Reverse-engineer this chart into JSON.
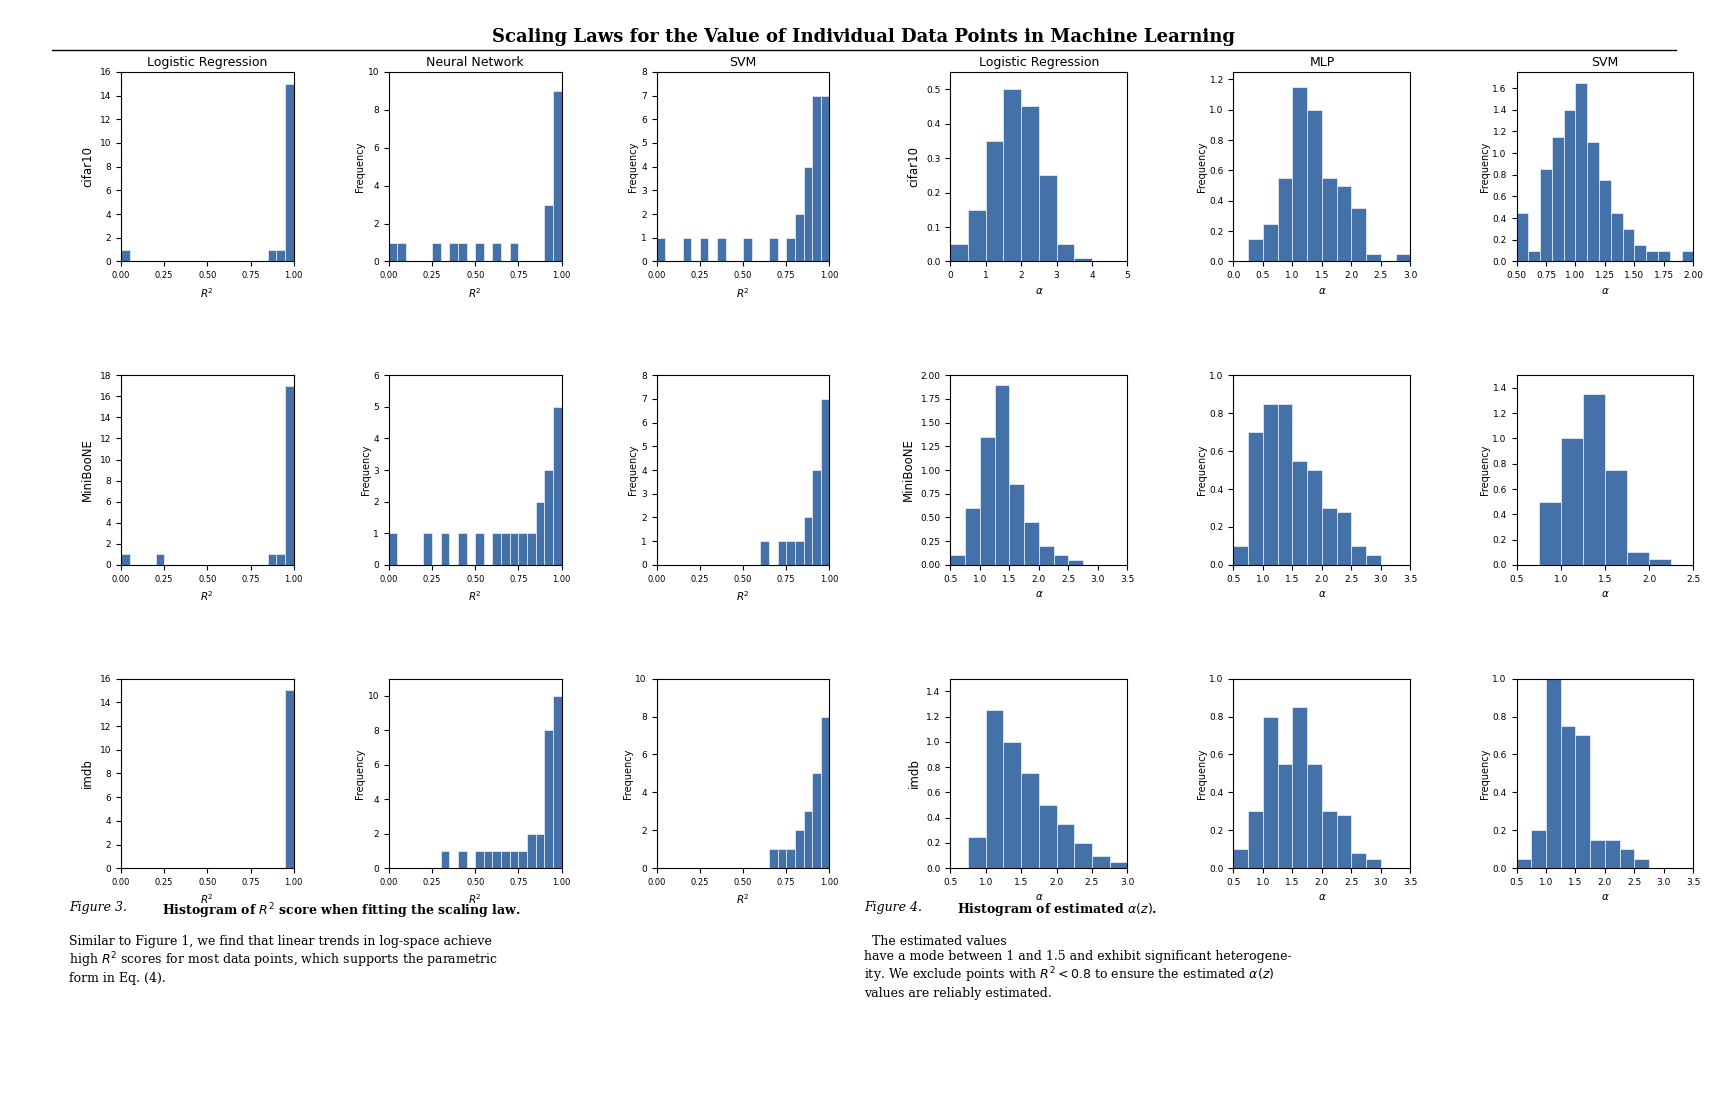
{
  "title": "Scaling Laws for the Value of Individual Data Points in Machine Learning",
  "fig3_row_labels": [
    "cifar10",
    "MiniBooNE",
    "imdb"
  ],
  "fig3_col_labels": [
    "Logistic Regression",
    "Neural Network",
    "SVM"
  ],
  "fig4_row_labels": [
    "cifar10",
    "MiniBooNE",
    "imdb"
  ],
  "fig4_col_labels": [
    "Logistic Regression",
    "MLP",
    "SVM"
  ],
  "bar_color": "#4472a8",
  "fig3_bins": [
    0.0,
    0.05,
    0.1,
    0.15,
    0.2,
    0.25,
    0.3,
    0.35,
    0.4,
    0.45,
    0.5,
    0.55,
    0.6,
    0.65,
    0.7,
    0.75,
    0.8,
    0.85,
    0.9,
    0.95,
    1.0
  ],
  "fig3_counts": {
    "cifar10_lr": [
      1,
      0,
      0,
      0,
      0,
      0,
      0,
      0,
      0,
      0,
      0,
      0,
      0,
      0,
      0,
      0,
      0,
      1,
      1,
      15
    ],
    "cifar10_nn": [
      1,
      1,
      0,
      0,
      0,
      1,
      0,
      1,
      1,
      0,
      1,
      0,
      1,
      0,
      1,
      0,
      0,
      0,
      3,
      9
    ],
    "cifar10_svm": [
      1,
      0,
      0,
      1,
      0,
      1,
      0,
      1,
      0,
      0,
      1,
      0,
      0,
      1,
      0,
      1,
      2,
      4,
      7,
      7
    ],
    "miniboone_lr": [
      1,
      0,
      0,
      0,
      1,
      0,
      0,
      0,
      0,
      0,
      0,
      0,
      0,
      0,
      0,
      0,
      0,
      1,
      1,
      17
    ],
    "miniboone_nn": [
      1,
      0,
      0,
      0,
      1,
      0,
      1,
      0,
      1,
      0,
      1,
      0,
      1,
      1,
      1,
      1,
      1,
      2,
      3,
      5
    ],
    "miniboone_svm": [
      0,
      0,
      0,
      0,
      0,
      0,
      0,
      0,
      0,
      0,
      0,
      0,
      1,
      0,
      1,
      1,
      1,
      2,
      4,
      7
    ],
    "imdb_lr": [
      0,
      0,
      0,
      0,
      0,
      0,
      0,
      0,
      0,
      0,
      0,
      0,
      0,
      0,
      0,
      0,
      0,
      0,
      0,
      15
    ],
    "imdb_nn": [
      0,
      0,
      0,
      0,
      0,
      0,
      1,
      0,
      1,
      0,
      1,
      1,
      1,
      1,
      1,
      1,
      2,
      2,
      8,
      10
    ],
    "imdb_svm": [
      0,
      0,
      0,
      0,
      0,
      0,
      0,
      0,
      0,
      0,
      0,
      0,
      0,
      1,
      1,
      1,
      2,
      3,
      5,
      8
    ]
  },
  "fig3_ylims": {
    "cifar10_lr": [
      0,
      16
    ],
    "cifar10_nn": [
      0,
      10
    ],
    "cifar10_svm": [
      0,
      8
    ],
    "miniboone_lr": [
      0,
      18
    ],
    "miniboone_nn": [
      0,
      6
    ],
    "miniboone_svm": [
      0,
      8
    ],
    "imdb_lr": [
      0,
      16
    ],
    "imdb_nn": [
      0,
      11
    ],
    "imdb_svm": [
      0,
      10
    ]
  },
  "fig4_data": {
    "cifar10_lr": {
      "bins": [
        0.0,
        0.5,
        1.0,
        1.5,
        2.0,
        2.5,
        3.0,
        3.5,
        4.0,
        4.5
      ],
      "counts": [
        0.05,
        0.15,
        0.35,
        0.5,
        0.45,
        0.25,
        0.05,
        0.01,
        0.0
      ],
      "xlim": [
        0,
        5
      ],
      "ylim": [
        0,
        0.55
      ]
    },
    "cifar10_mlp": {
      "bins": [
        0.0,
        0.25,
        0.5,
        0.75,
        1.0,
        1.25,
        1.5,
        1.75,
        2.0,
        2.25,
        2.5,
        2.75,
        3.0
      ],
      "counts": [
        0.0,
        0.15,
        0.25,
        0.55,
        1.15,
        1.0,
        0.55,
        0.5,
        0.35,
        0.05,
        0.0,
        0.05
      ],
      "xlim": [
        0,
        3
      ],
      "ylim": [
        0,
        1.25
      ]
    },
    "cifar10_svm": {
      "bins": [
        0.5,
        0.6,
        0.7,
        0.8,
        0.9,
        1.0,
        1.1,
        1.2,
        1.3,
        1.4,
        1.5,
        1.6,
        1.7,
        1.8,
        1.9,
        2.0
      ],
      "counts": [
        0.45,
        0.1,
        0.85,
        1.15,
        1.4,
        1.65,
        1.1,
        0.75,
        0.45,
        0.3,
        0.15,
        0.1,
        0.1,
        0.0,
        0.1
      ],
      "xlim": [
        0.5,
        2.0
      ],
      "ylim": [
        0,
        1.75
      ]
    },
    "miniboone_lr": {
      "bins": [
        0.5,
        0.75,
        1.0,
        1.25,
        1.5,
        1.75,
        2.0,
        2.25,
        2.5,
        2.75,
        3.0,
        3.25,
        3.5
      ],
      "counts": [
        0.1,
        0.6,
        1.35,
        1.9,
        0.85,
        0.45,
        0.2,
        0.1,
        0.05,
        0.0,
        0.0,
        0.0
      ],
      "xlim": [
        0.5,
        3.5
      ],
      "ylim": [
        0,
        2.0
      ]
    },
    "miniboone_mlp": {
      "bins": [
        0.5,
        0.75,
        1.0,
        1.25,
        1.5,
        1.75,
        2.0,
        2.25,
        2.5,
        2.75,
        3.0,
        3.25,
        3.5
      ],
      "counts": [
        0.1,
        0.7,
        0.85,
        0.85,
        0.55,
        0.5,
        0.3,
        0.28,
        0.1,
        0.05,
        0.0,
        0.0
      ],
      "xlim": [
        0.5,
        3.5
      ],
      "ylim": [
        0,
        1.0
      ]
    },
    "miniboone_svm": {
      "bins": [
        0.5,
        0.75,
        1.0,
        1.25,
        1.5,
        1.75,
        2.0,
        2.25,
        2.5
      ],
      "counts": [
        0.0,
        0.5,
        1.0,
        1.35,
        0.75,
        0.1,
        0.05,
        0.0
      ],
      "xlim": [
        0.5,
        2.5
      ],
      "ylim": [
        0,
        1.5
      ]
    },
    "imdb_lr": {
      "bins": [
        0.5,
        0.75,
        1.0,
        1.25,
        1.5,
        1.75,
        2.0,
        2.25,
        2.5,
        2.75,
        3.0
      ],
      "counts": [
        0.0,
        0.25,
        1.25,
        1.0,
        0.75,
        0.5,
        0.35,
        0.2,
        0.1,
        0.05
      ],
      "xlim": [
        0.5,
        3.0
      ],
      "ylim": [
        0,
        1.5
      ]
    },
    "imdb_mlp": {
      "bins": [
        0.5,
        0.75,
        1.0,
        1.25,
        1.5,
        1.75,
        2.0,
        2.25,
        2.5,
        2.75,
        3.0,
        3.25,
        3.5
      ],
      "counts": [
        0.1,
        0.3,
        0.8,
        0.55,
        0.85,
        0.55,
        0.3,
        0.28,
        0.08,
        0.05,
        0.0,
        0.0
      ],
      "xlim": [
        0.5,
        3.5
      ],
      "ylim": [
        0,
        1.0
      ]
    },
    "imdb_svm": {
      "bins": [
        0.5,
        0.75,
        1.0,
        1.25,
        1.5,
        1.75,
        2.0,
        2.25,
        2.5,
        2.75,
        3.0,
        3.25,
        3.5
      ],
      "counts": [
        0.05,
        0.2,
        1.0,
        0.75,
        0.7,
        0.15,
        0.15,
        0.1,
        0.05,
        0.0,
        0.0,
        0.0
      ],
      "xlim": [
        0.5,
        3.5
      ],
      "ylim": [
        0,
        1.0
      ]
    }
  },
  "caption_fig3_italic": "Figure 3. ",
  "caption_fig3_bold": "Histogram of $R^2$ score when fitting the scaling law.",
  "caption_fig3_normal": "Similar to Figure 1, we find that linear trends in log-space achieve\nhigh $R^2$ scores for most data points, which supports the parametric\nform in Eq. (4).",
  "caption_fig4_italic": "Figure 4. ",
  "caption_fig4_bold": "Histogram of estimated $\\alpha(z)$.",
  "caption_fig4_normal": "  The estimated values\nhave a mode between 1 and 1.5 and exhibit significant heterogene-\nity. We exclude points with $R^2 < 0.8$ to ensure the estimated $\\alpha(z)$\nvalues are reliably estimated."
}
